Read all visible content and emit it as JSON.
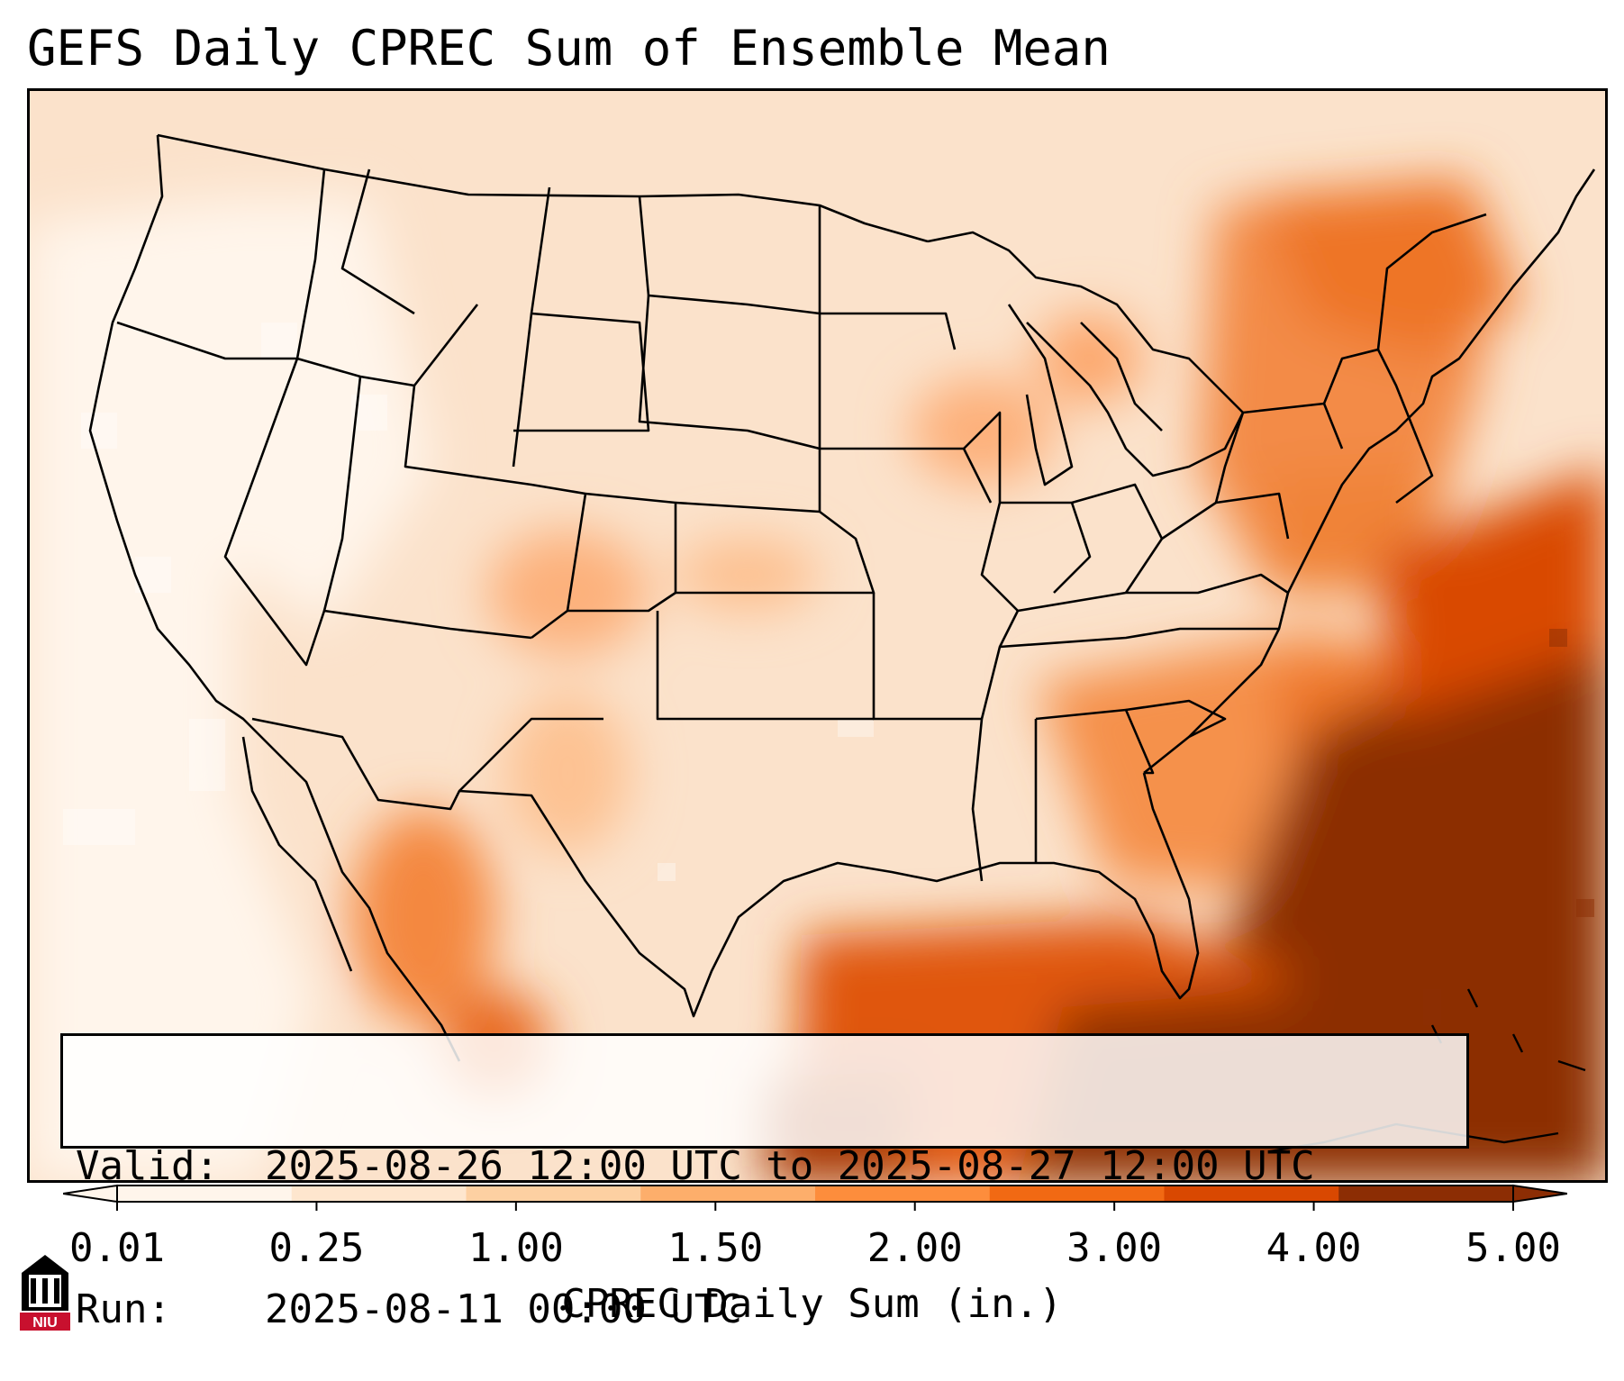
{
  "title": "GEFS Daily CPREC Sum of Ensemble Mean",
  "info": {
    "valid_label": "Valid:",
    "valid_value": "2025-08-26 12:00 UTC to 2025-08-27 12:00 UTC",
    "run_label": "Run:",
    "run_value": "2025-08-11 00:00 UTC"
  },
  "colorbar": {
    "label": "CPREC Daily Sum (in.)",
    "ticks": [
      "0.01",
      "0.25",
      "1.00",
      "1.50",
      "2.00",
      "3.00",
      "4.00",
      "5.00"
    ],
    "colors": [
      "#fff5eb",
      "#fee6ce",
      "#fdd0a2",
      "#fdae6b",
      "#fd8d3c",
      "#f16913",
      "#d94801",
      "#8c2d04"
    ],
    "extend": "both"
  },
  "logo": {
    "text": "NIU",
    "color": "#c8102e"
  },
  "map": {
    "region": "Continental United States",
    "field": "CPREC daily sum",
    "border_color": "#000000"
  }
}
